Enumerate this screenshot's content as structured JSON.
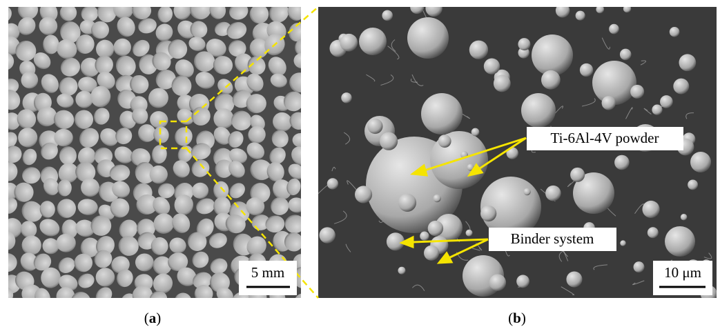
{
  "panels": [
    {
      "scale_bar": "5 mm",
      "caption": [
        "(",
        "a",
        ")"
      ]
    },
    {
      "annotations": [
        "Ti-6Al-4V powder",
        "Binder system"
      ],
      "scale_bar": "10 μm",
      "caption": [
        "(",
        "b",
        ")"
      ]
    }
  ]
}
